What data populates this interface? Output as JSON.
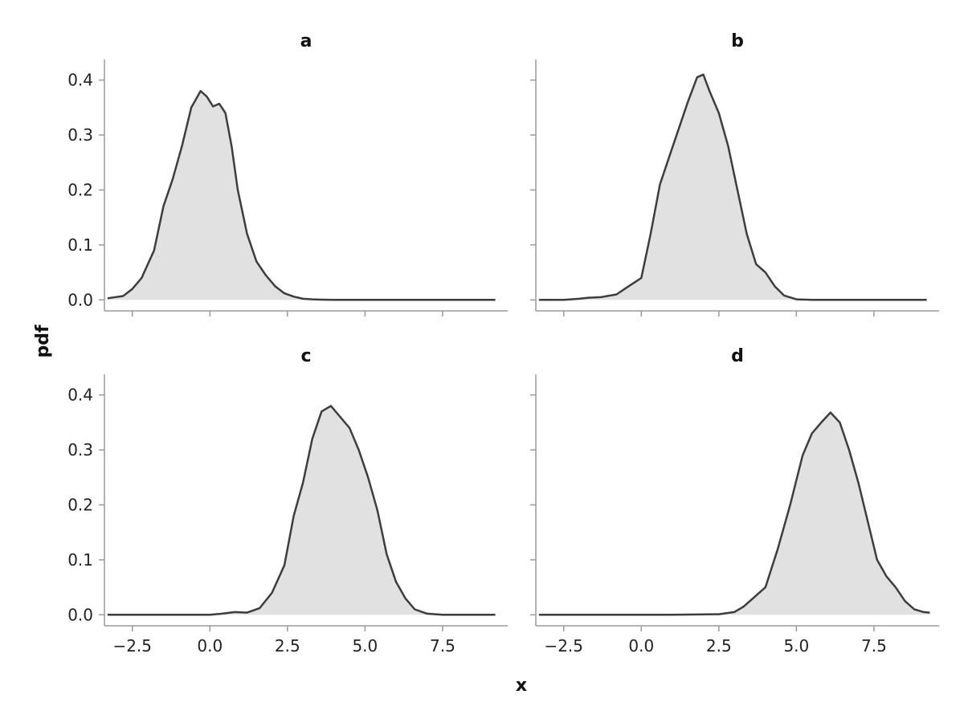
{
  "chart_data": {
    "type": "area",
    "xlabel": "x",
    "ylabel": "pdf",
    "xlim": [
      -3.4,
      9.6
    ],
    "ylim": [
      -0.02,
      0.4375
    ],
    "x_ticks": [
      -2.5,
      0.0,
      2.5,
      5.0,
      7.5
    ],
    "x_tick_labels": [
      "−2.5",
      "0.0",
      "2.5",
      "5.0",
      "7.5"
    ],
    "y_ticks": [
      0.0,
      0.1,
      0.2,
      0.3,
      0.4
    ],
    "y_tick_labels": [
      "0.0",
      "0.1",
      "0.2",
      "0.3",
      "0.4"
    ],
    "grid": false,
    "colors": {
      "fill": "#e1e1e1",
      "line": "#3d3d3d",
      "axis": "#9a9a9a"
    },
    "panels": [
      {
        "title": "a",
        "x": [
          -3.3,
          -2.8,
          -2.5,
          -2.2,
          -1.8,
          -1.5,
          -1.2,
          -0.9,
          -0.6,
          -0.3,
          -0.1,
          0.1,
          0.3,
          0.5,
          0.7,
          0.9,
          1.2,
          1.5,
          1.8,
          2.1,
          2.4,
          2.7,
          3.0,
          3.3,
          3.6,
          4.0,
          5.0,
          6.0,
          7.0,
          8.0,
          9.2
        ],
        "y": [
          0.003,
          0.007,
          0.02,
          0.04,
          0.09,
          0.17,
          0.22,
          0.28,
          0.35,
          0.38,
          0.37,
          0.352,
          0.357,
          0.34,
          0.28,
          0.2,
          0.12,
          0.07,
          0.045,
          0.025,
          0.012,
          0.006,
          0.002,
          0.001,
          0.0005,
          0.0,
          0.0,
          0.0,
          0.0,
          0.0,
          0.0
        ]
      },
      {
        "title": "b",
        "x": [
          -3.3,
          -2.5,
          -2.0,
          -1.7,
          -1.3,
          -0.8,
          -0.4,
          0.0,
          0.3,
          0.6,
          0.9,
          1.2,
          1.5,
          1.8,
          2.0,
          2.2,
          2.5,
          2.8,
          3.1,
          3.4,
          3.7,
          4.0,
          4.3,
          4.6,
          5.0,
          5.5,
          6.0,
          7.0,
          8.0,
          9.2
        ],
        "y": [
          0.0,
          0.0,
          0.002,
          0.004,
          0.005,
          0.01,
          0.025,
          0.04,
          0.12,
          0.21,
          0.26,
          0.31,
          0.36,
          0.405,
          0.41,
          0.38,
          0.34,
          0.28,
          0.2,
          0.12,
          0.065,
          0.05,
          0.025,
          0.008,
          0.001,
          0.0,
          0.0,
          0.0,
          0.0,
          0.0
        ]
      },
      {
        "title": "c",
        "x": [
          -3.3,
          -2.0,
          0.0,
          0.4,
          0.8,
          1.2,
          1.6,
          2.0,
          2.4,
          2.7,
          3.0,
          3.3,
          3.6,
          3.9,
          4.2,
          4.5,
          4.8,
          5.1,
          5.4,
          5.7,
          6.0,
          6.3,
          6.6,
          7.0,
          7.5,
          8.0,
          9.2
        ],
        "y": [
          0.0,
          0.0,
          0.0,
          0.002,
          0.005,
          0.004,
          0.012,
          0.04,
          0.09,
          0.18,
          0.24,
          0.32,
          0.37,
          0.38,
          0.36,
          0.34,
          0.3,
          0.25,
          0.19,
          0.11,
          0.06,
          0.03,
          0.01,
          0.002,
          0.0,
          0.0,
          0.0
        ]
      },
      {
        "title": "d",
        "x": [
          -3.3,
          -1.0,
          1.0,
          2.5,
          3.0,
          3.3,
          3.6,
          4.0,
          4.4,
          4.8,
          5.2,
          5.5,
          5.8,
          6.1,
          6.4,
          6.7,
          7.0,
          7.3,
          7.6,
          7.9,
          8.2,
          8.5,
          8.8,
          9.1,
          9.3
        ],
        "y": [
          0.0,
          0.0,
          0.0,
          0.001,
          0.005,
          0.015,
          0.03,
          0.05,
          0.12,
          0.2,
          0.29,
          0.33,
          0.35,
          0.368,
          0.35,
          0.3,
          0.24,
          0.17,
          0.1,
          0.07,
          0.05,
          0.025,
          0.01,
          0.005,
          0.004
        ]
      }
    ]
  }
}
